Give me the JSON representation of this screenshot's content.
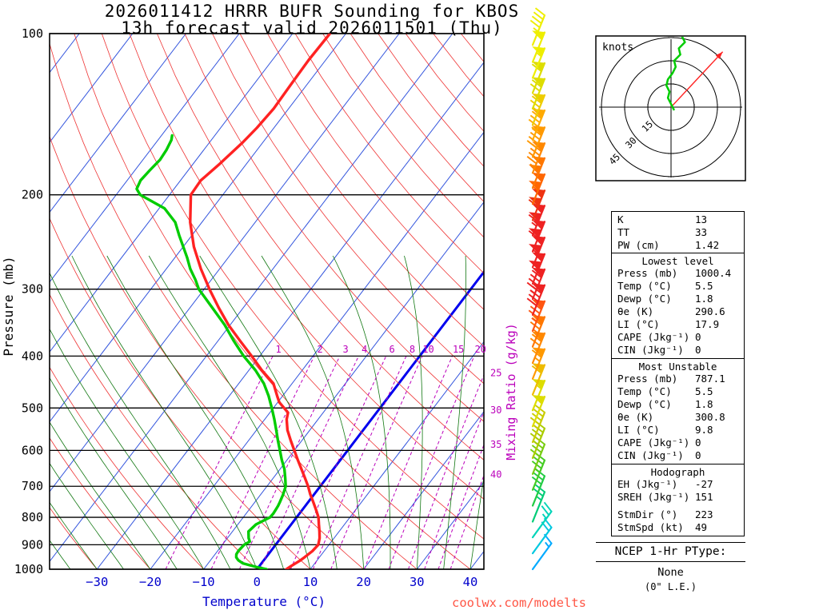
{
  "title": {
    "line1": "2026011412 HRRR BUFR Sounding for KBOS",
    "line2": "13h forecast valid 2026011501 (Thu)"
  },
  "watermark": "coolwx.com/modelts",
  "chart_data": [
    {
      "type": "line",
      "name": "skew-t-log-p-sounding",
      "xlabel": "Temperature (°C)",
      "ylabel": "Pressure (mb)",
      "y2label": "Mixing Ratio (g/kg)",
      "x_ticks": [
        -30,
        -20,
        -10,
        0,
        10,
        20,
        30,
        40
      ],
      "y_ticks": [
        100,
        200,
        300,
        400,
        500,
        600,
        700,
        800,
        900,
        1000
      ],
      "pressure_range_mb": [
        100,
        1000
      ],
      "pressure_log_scale": true,
      "skew": 0.763,
      "isotherm_step_c": 10,
      "dry_adiabat_step_c": 10,
      "moist_adiabat_step_c": 5,
      "mixing_ratio_lines_gkg": [
        1,
        2,
        3,
        4,
        6,
        8,
        10,
        15,
        20,
        25,
        30,
        35,
        40
      ],
      "colors": {
        "isotherm": "#3355dd",
        "freezing_line": "#0000ee",
        "dry_adiabat": "#ee3333",
        "moist_adiabat": "#117711",
        "mixing_ratio": "#bb00bb",
        "pressure_line": "#000000",
        "temperature_curve": "#ff2222",
        "dewpoint_curve": "#00cc00",
        "temp_tick": "#0000cc"
      },
      "series": [
        {
          "name": "temperature",
          "pressure_mb": [
            1000,
            985,
            965,
            950,
            925,
            900,
            875,
            850,
            825,
            800,
            775,
            750,
            725,
            700,
            675,
            650,
            625,
            600,
            575,
            550,
            525,
            510,
            500,
            488,
            475,
            450,
            425,
            400,
            375,
            350,
            325,
            300,
            275,
            250,
            225,
            200,
            188,
            175,
            160,
            150,
            138,
            125,
            112,
            100
          ],
          "value_c": [
            5.5,
            6.0,
            6.8,
            7.2,
            7.8,
            8.0,
            7.3,
            6.3,
            5.2,
            4.1,
            2.6,
            1.0,
            -0.7,
            -2.3,
            -4.1,
            -6.0,
            -8.0,
            -10.0,
            -12.1,
            -14.2,
            -15.9,
            -16.6,
            -18.0,
            -19.7,
            -21.0,
            -23.5,
            -27.6,
            -31.5,
            -35.8,
            -40.3,
            -44.6,
            -49.0,
            -53.5,
            -58.0,
            -62.2,
            -66.0,
            -66.2,
            -65.0,
            -63.8,
            -63.2,
            -62.8,
            -63.0,
            -63.2,
            -63.0
          ]
        },
        {
          "name": "dewpoint",
          "pressure_mb": [
            1000,
            990,
            975,
            962,
            950,
            938,
            925,
            912,
            900,
            888,
            875,
            850,
            825,
            800,
            788,
            775,
            762,
            750,
            725,
            700,
            675,
            650,
            625,
            600,
            575,
            550,
            525,
            500,
            475,
            450,
            425,
            400,
            375,
            350,
            325,
            300,
            288,
            275,
            262,
            250,
            238,
            225,
            212,
            200,
            195,
            188,
            180,
            172,
            165,
            158,
            155
          ],
          "value_c": [
            1.8,
            -0.5,
            -3.5,
            -4.8,
            -5.6,
            -6.0,
            -6.1,
            -6.0,
            -5.9,
            -5.3,
            -6.0,
            -7.0,
            -6.6,
            -5.0,
            -4.9,
            -5.0,
            -5.1,
            -5.3,
            -5.8,
            -6.5,
            -7.8,
            -9.2,
            -11.0,
            -12.7,
            -14.5,
            -16.3,
            -18.2,
            -20.3,
            -22.6,
            -25.3,
            -28.8,
            -33.0,
            -37.0,
            -41.0,
            -45.8,
            -51.0,
            -53.0,
            -55.5,
            -57.7,
            -60.0,
            -62.4,
            -65.0,
            -69.0,
            -75.5,
            -77.0,
            -77.5,
            -77.2,
            -76.8,
            -77.0,
            -77.5,
            -78.0
          ]
        }
      ],
      "wind_barbs": [
        {
          "p": 1000,
          "kt": 15,
          "c": "#00aaff"
        },
        {
          "p": 934,
          "kt": 20,
          "c": "#00c8e0"
        },
        {
          "p": 872,
          "kt": 25,
          "c": "#00d4b8"
        },
        {
          "p": 815,
          "kt": 25,
          "c": "#00cc77"
        },
        {
          "p": 761,
          "kt": 30,
          "c": "#22cc44"
        },
        {
          "p": 711,
          "kt": 35,
          "c": "#44cc22"
        },
        {
          "p": 664,
          "kt": 40,
          "c": "#77cc11"
        },
        {
          "p": 620,
          "kt": 45,
          "c": "#aacc00"
        },
        {
          "p": 579,
          "kt": 45,
          "c": "#c8cc00"
        },
        {
          "p": 541,
          "kt": 50,
          "c": "#dddd00"
        },
        {
          "p": 505,
          "kt": 55,
          "c": "#dddd00"
        },
        {
          "p": 472,
          "kt": 60,
          "c": "#eebb00"
        },
        {
          "p": 441,
          "kt": 65,
          "c": "#ff9900"
        },
        {
          "p": 412,
          "kt": 70,
          "c": "#ff8800"
        },
        {
          "p": 384,
          "kt": 75,
          "c": "#ff7700"
        },
        {
          "p": 359,
          "kt": 85,
          "c": "#ff5511"
        },
        {
          "p": 335,
          "kt": 90,
          "c": "#ee2222"
        },
        {
          "p": 313,
          "kt": 95,
          "c": "#ee2222"
        },
        {
          "p": 293,
          "kt": 100,
          "c": "#ee2222"
        },
        {
          "p": 273,
          "kt": 105,
          "c": "#ee2222"
        },
        {
          "p": 255,
          "kt": 110,
          "c": "#ee2222"
        },
        {
          "p": 238,
          "kt": 115,
          "c": "#ee2222"
        },
        {
          "p": 223,
          "kt": 110,
          "c": "#ee3311"
        },
        {
          "p": 208,
          "kt": 105,
          "c": "#ff6600"
        },
        {
          "p": 194,
          "kt": 100,
          "c": "#ff7700"
        },
        {
          "p": 182,
          "kt": 95,
          "c": "#ff8800"
        },
        {
          "p": 170,
          "kt": 90,
          "c": "#ff9900"
        },
        {
          "p": 158,
          "kt": 85,
          "c": "#ffaa00"
        },
        {
          "p": 148,
          "kt": 75,
          "c": "#eecc00"
        },
        {
          "p": 138,
          "kt": 70,
          "c": "#dddd00"
        },
        {
          "p": 129,
          "kt": 60,
          "c": "#dddd00"
        },
        {
          "p": 121,
          "kt": 55,
          "c": "#eeee00"
        },
        {
          "p": 113,
          "kt": 50,
          "c": "#eeee00"
        },
        {
          "p": 105,
          "kt": 45,
          "c": "#eeee00"
        }
      ]
    },
    {
      "type": "line",
      "name": "hodograph",
      "label": "knots",
      "rings_kt": [
        15,
        30,
        45
      ],
      "trace_uv_kt": [
        [
          2,
          -2
        ],
        [
          0,
          2
        ],
        [
          -2,
          6
        ],
        [
          -1,
          10
        ],
        [
          -3,
          14
        ],
        [
          -2,
          18
        ],
        [
          1,
          22
        ],
        [
          3,
          26
        ],
        [
          2,
          30
        ],
        [
          6,
          34
        ],
        [
          5,
          38
        ],
        [
          9,
          42
        ],
        [
          7,
          46
        ],
        [
          10,
          49
        ]
      ],
      "storm": {
        "dir_deg": 223,
        "spd_kt": 49
      },
      "trace_color": "#00cc00",
      "storm_vector_color": "#ff2222"
    }
  ],
  "stats": {
    "summary": [
      [
        "K",
        "13"
      ],
      [
        "TT",
        "33"
      ],
      [
        "PW (cm)",
        "1.42"
      ]
    ],
    "sections": [
      {
        "title": "Lowest level",
        "rows": [
          [
            "Press (mb)",
            "1000.4"
          ],
          [
            "Temp (°C)",
            "5.5"
          ],
          [
            "Dewp (°C)",
            "1.8"
          ],
          [
            "θe (K)",
            "290.6"
          ],
          [
            "LI (°C)",
            "17.9"
          ],
          [
            "CAPE (Jkg⁻¹)",
            "0"
          ],
          [
            "CIN (Jkg⁻¹)",
            "0"
          ]
        ]
      },
      {
        "title": "Most Unstable",
        "rows": [
          [
            "Press (mb)",
            "787.1"
          ],
          [
            "Temp (°C)",
            "5.5"
          ],
          [
            "Dewp (°C)",
            "1.8"
          ],
          [
            "θe (K)",
            "300.8"
          ],
          [
            "LI (°C)",
            "9.8"
          ],
          [
            "CAPE (Jkg⁻¹)",
            "0"
          ],
          [
            "CIN (Jkg⁻¹)",
            "0"
          ]
        ]
      },
      {
        "title": "Hodograph",
        "rows": [
          [
            "EH (Jkg⁻¹)",
            "-27"
          ],
          [
            "SREH (Jkg⁻¹)",
            "151"
          ],
          [
            "",
            ""
          ],
          [
            "StmDir (°)",
            "223"
          ],
          [
            "StmSpd (kt)",
            "49"
          ]
        ]
      }
    ]
  },
  "ptype": {
    "heading": "NCEP 1-Hr PType:",
    "value": "None",
    "note": "(0\" L.E.)"
  }
}
